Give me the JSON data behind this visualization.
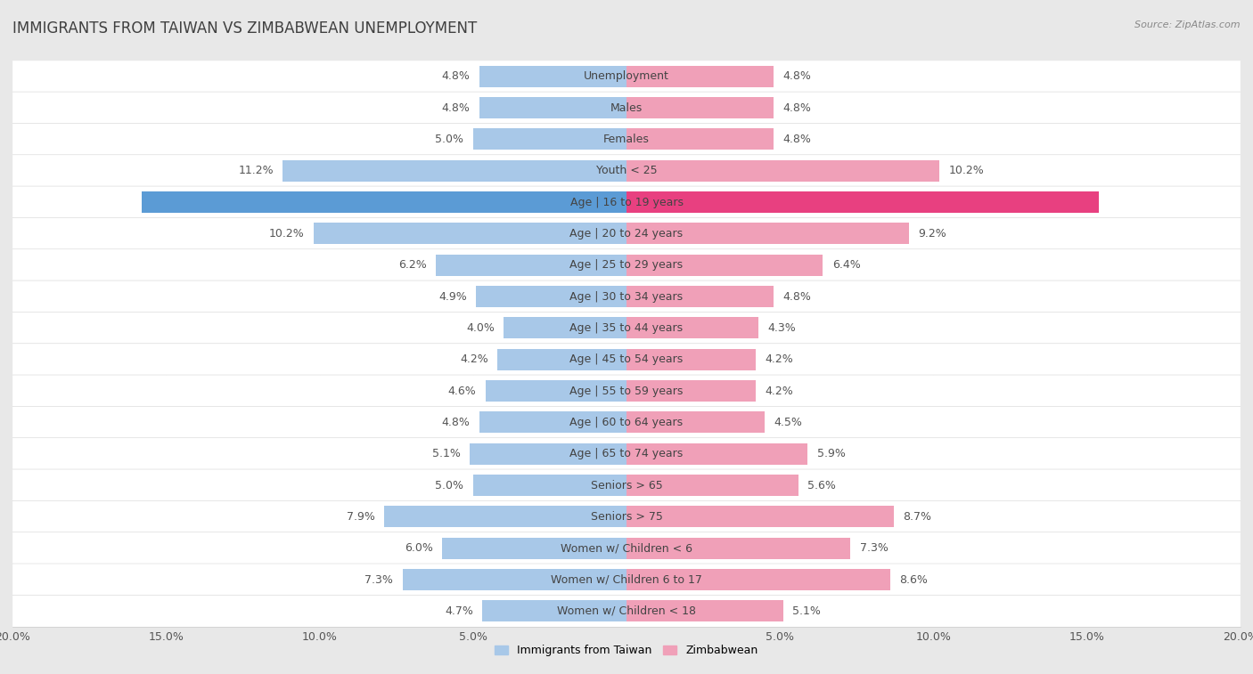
{
  "title": "IMMIGRANTS FROM TAIWAN VS ZIMBABWEAN UNEMPLOYMENT",
  "source": "Source: ZipAtlas.com",
  "categories": [
    "Unemployment",
    "Males",
    "Females",
    "Youth < 25",
    "Age | 16 to 19 years",
    "Age | 20 to 24 years",
    "Age | 25 to 29 years",
    "Age | 30 to 34 years",
    "Age | 35 to 44 years",
    "Age | 45 to 54 years",
    "Age | 55 to 59 years",
    "Age | 60 to 64 years",
    "Age | 65 to 74 years",
    "Seniors > 65",
    "Seniors > 75",
    "Women w/ Children < 6",
    "Women w/ Children 6 to 17",
    "Women w/ Children < 18"
  ],
  "taiwan_values": [
    4.8,
    4.8,
    5.0,
    11.2,
    15.8,
    10.2,
    6.2,
    4.9,
    4.0,
    4.2,
    4.6,
    4.8,
    5.1,
    5.0,
    7.9,
    6.0,
    7.3,
    4.7
  ],
  "zimbabwe_values": [
    4.8,
    4.8,
    4.8,
    10.2,
    15.4,
    9.2,
    6.4,
    4.8,
    4.3,
    4.2,
    4.2,
    4.5,
    5.9,
    5.6,
    8.7,
    7.3,
    8.6,
    5.1
  ],
  "taiwan_color": "#a8c8e8",
  "zimbabwe_color": "#f0a0b8",
  "taiwan_highlight_color": "#5b9bd5",
  "zimbabwe_highlight_color": "#e84080",
  "row_bg_color": "#ffffff",
  "row_border_color": "#dddddd",
  "outer_bg_color": "#e8e8e8",
  "axis_max": 20.0,
  "bar_height": 0.68,
  "label_fontsize": 9,
  "category_fontsize": 9,
  "title_fontsize": 12,
  "tick_fontsize": 9,
  "value_color": "#555555",
  "title_color": "#404040",
  "source_color": "#888888"
}
